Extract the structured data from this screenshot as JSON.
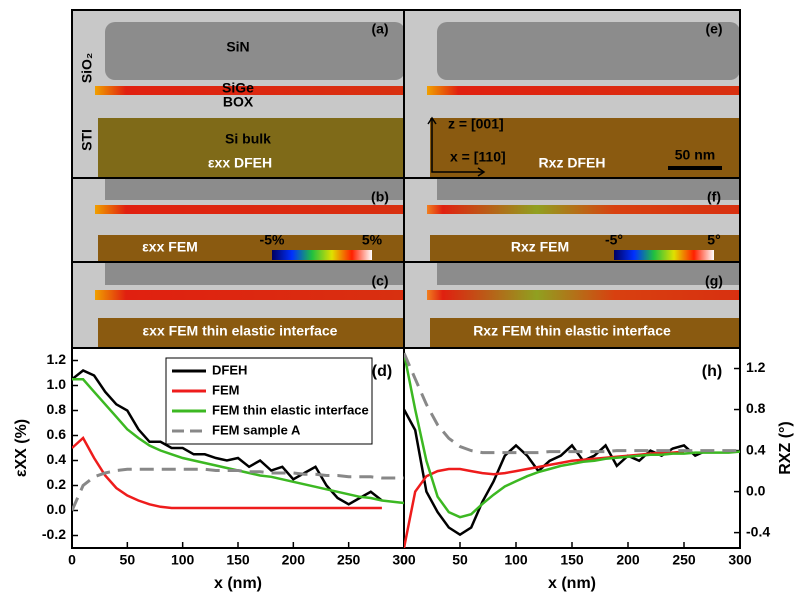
{
  "image_panels": [
    {
      "label": "(a)",
      "texts": [
        "SiN",
        "SiO₂",
        "SiGe",
        "BOX",
        "STI",
        "Si bulk",
        "εxx DFEH"
      ]
    },
    {
      "label": "(e)",
      "texts": [
        "z = [001]",
        "x = [110]",
        "Rxz DFEH",
        "50 nm"
      ]
    },
    {
      "label": "(b)",
      "texts": [
        "εxx FEM",
        "-5%",
        "5%"
      ]
    },
    {
      "label": "(f)",
      "texts": [
        "Rxz FEM",
        "-5°",
        "5°"
      ]
    },
    {
      "label": "(c)",
      "texts": [
        "εxx FEM thin elastic interface"
      ]
    },
    {
      "label": "(g)",
      "texts": [
        "Rxz FEM thin elastic interface"
      ]
    }
  ],
  "chart_data": [
    {
      "type": "line",
      "annotation": "(d)",
      "xlabel": "x (nm)",
      "ylabel": "εXX (%)",
      "yaxis_side": "left",
      "legend": "top-right",
      "xlim": [
        0,
        300
      ],
      "xticks": [
        0,
        50,
        100,
        150,
        200,
        250,
        300
      ],
      "ylim": [
        -0.3,
        1.3
      ],
      "yticks": [
        -0.2,
        {
          "value": 0,
          "label": "0.0"
        },
        0.2,
        0.4,
        0.6,
        0.8,
        {
          "value": 1,
          "label": "1.0"
        },
        1.2
      ],
      "x": [
        0,
        10,
        20,
        30,
        40,
        50,
        60,
        70,
        80,
        90,
        100,
        110,
        120,
        130,
        140,
        150,
        160,
        170,
        180,
        190,
        200,
        210,
        220,
        230,
        240,
        250,
        260,
        270,
        280,
        290,
        300
      ],
      "series": [
        {
          "name": "DFEH",
          "color": "#000000",
          "dashed": false,
          "values": [
            1.05,
            1.12,
            1.08,
            0.95,
            0.85,
            0.8,
            0.65,
            0.55,
            0.55,
            0.5,
            0.5,
            0.45,
            0.45,
            0.42,
            0.4,
            0.42,
            0.35,
            0.4,
            0.32,
            0.35,
            0.25,
            0.3,
            0.35,
            0.2,
            0.1,
            0.05,
            0.1,
            0.15,
            0.08,
            null,
            null
          ]
        },
        {
          "name": "FEM",
          "color": "#ee1c1c",
          "dashed": false,
          "values": [
            0.5,
            0.58,
            0.42,
            0.28,
            0.18,
            0.12,
            0.08,
            0.05,
            0.03,
            0.02,
            0.02,
            0.02,
            0.02,
            0.02,
            0.02,
            0.02,
            0.02,
            0.02,
            0.02,
            0.02,
            0.02,
            0.02,
            0.02,
            0.02,
            0.02,
            0.02,
            0.02,
            0.02,
            0.02,
            null,
            null
          ]
        },
        {
          "name": "FEM thin elastic interface",
          "color": "#3cb822",
          "dashed": false,
          "values": [
            1.05,
            1.05,
            0.95,
            0.85,
            0.75,
            0.65,
            0.58,
            0.52,
            0.48,
            0.45,
            0.42,
            0.4,
            0.38,
            0.36,
            0.34,
            0.32,
            0.3,
            0.28,
            0.27,
            0.25,
            0.23,
            0.21,
            0.19,
            0.17,
            0.15,
            0.13,
            0.11,
            0.1,
            0.08,
            0.07,
            0.06
          ]
        },
        {
          "name": "FEM sample A",
          "color": "#888888",
          "dashed": true,
          "values": [
            0.0,
            0.2,
            0.27,
            0.3,
            0.32,
            0.33,
            0.33,
            0.33,
            0.33,
            0.33,
            0.33,
            0.33,
            0.33,
            0.32,
            0.32,
            0.32,
            0.31,
            0.31,
            0.3,
            0.3,
            0.3,
            0.29,
            0.29,
            0.28,
            0.28,
            0.27,
            0.27,
            0.27,
            0.26,
            0.26,
            0.26
          ]
        }
      ]
    },
    {
      "type": "line",
      "annotation": "(h)",
      "xlabel": "x (nm)",
      "ylabel": "RXZ (°)",
      "yaxis_side": "right",
      "xlim": [
        0,
        300
      ],
      "xticks": [
        0,
        50,
        100,
        150,
        200,
        250,
        300
      ],
      "ylim": [
        -0.55,
        1.4
      ],
      "yticks": [
        -0.4,
        {
          "value": 0,
          "label": "0.0"
        },
        0.4,
        0.8,
        1.2
      ],
      "x": [
        0,
        10,
        20,
        30,
        40,
        50,
        60,
        70,
        80,
        90,
        100,
        110,
        120,
        130,
        140,
        150,
        160,
        170,
        180,
        190,
        200,
        210,
        220,
        230,
        240,
        250,
        260,
        270,
        280,
        290,
        300
      ],
      "series": [
        {
          "color": "#000000",
          "dashed": false,
          "values": [
            0.8,
            0.6,
            0.0,
            -0.2,
            -0.35,
            -0.42,
            -0.35,
            -0.1,
            0.1,
            0.35,
            0.45,
            0.35,
            0.2,
            0.3,
            0.35,
            0.45,
            0.3,
            0.35,
            0.45,
            0.25,
            0.35,
            0.3,
            0.4,
            0.35,
            0.42,
            0.45,
            0.35,
            0.4,
            null,
            null,
            null
          ]
        },
        {
          "color": "#ee1c1c",
          "dashed": false,
          "values": [
            -0.55,
            0.0,
            0.15,
            0.2,
            0.22,
            0.22,
            0.2,
            0.18,
            0.17,
            0.18,
            0.2,
            0.22,
            0.24,
            0.26,
            0.28,
            0.3,
            0.31,
            0.32,
            0.33,
            0.34,
            0.35,
            0.36,
            0.37,
            0.38,
            0.38,
            0.39,
            null,
            null,
            null,
            null,
            null
          ]
        },
        {
          "color": "#3cb822",
          "dashed": false,
          "values": [
            1.35,
            0.8,
            0.3,
            -0.05,
            -0.2,
            -0.25,
            -0.22,
            -0.12,
            -0.03,
            0.05,
            0.1,
            0.15,
            0.19,
            0.22,
            0.25,
            0.27,
            0.29,
            0.3,
            0.32,
            0.33,
            0.34,
            0.35,
            0.36,
            0.36,
            0.37,
            0.37,
            0.38,
            0.38,
            0.38,
            0.38,
            0.39
          ]
        },
        {
          "color": "#888888",
          "dashed": true,
          "values": [
            1.35,
            1.1,
            0.85,
            0.65,
            0.52,
            0.44,
            0.4,
            0.38,
            0.38,
            0.38,
            0.38,
            0.38,
            0.38,
            0.39,
            0.39,
            0.39,
            0.39,
            0.39,
            0.39,
            0.4,
            0.4,
            0.4,
            0.4,
            0.4,
            0.4,
            0.4,
            0.4,
            0.4,
            0.4,
            0.4,
            0.4
          ]
        }
      ]
    }
  ]
}
